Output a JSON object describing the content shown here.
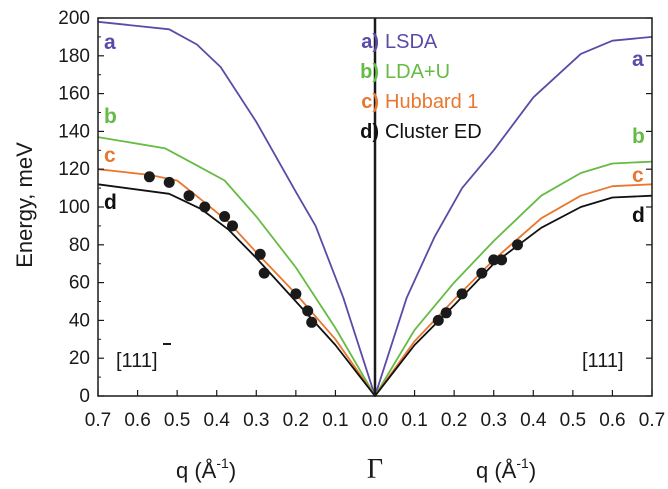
{
  "chart_data": {
    "type": "line",
    "ylabel": "Energy, meV",
    "xlabel_left": "q (Å",
    "xlabel_right": "q (Å",
    "xlabel_exp": "-1",
    "xlabel_close": ")",
    "center_label": "Γ",
    "direction_left": "[11",
    "direction_left_digit": "1",
    "direction_left_close": "]",
    "direction_right": "[111]",
    "ylim": [
      0,
      200
    ],
    "yticks": [
      0,
      20,
      40,
      60,
      80,
      100,
      120,
      140,
      160,
      180,
      200
    ],
    "ytick_labels": [
      "0",
      "20",
      "40",
      "60",
      "80",
      "100",
      "120",
      "140",
      "160",
      "180",
      "200"
    ],
    "xticks": [
      -0.7,
      -0.6,
      -0.5,
      -0.4,
      -0.3,
      -0.2,
      -0.1,
      0.0,
      0.1,
      0.2,
      0.3,
      0.4,
      0.5,
      0.6,
      0.7
    ],
    "xtick_labels": [
      "0.7",
      "0.6",
      "0.5",
      "0.4",
      "0.3",
      "0.2",
      "0.1",
      "0.0",
      "0.1",
      "0.2",
      "0.3",
      "0.4",
      "0.5",
      "0.6",
      "0.7"
    ],
    "series": [
      {
        "key": "a)",
        "name": "LSDA",
        "tag": "a",
        "color": "#5b4aa8",
        "points": [
          [
            -0.7,
            198
          ],
          [
            -0.52,
            194
          ],
          [
            -0.45,
            186
          ],
          [
            -0.39,
            174
          ],
          [
            -0.3,
            145
          ],
          [
            -0.2,
            108
          ],
          [
            -0.15,
            90
          ],
          [
            -0.08,
            52
          ],
          [
            0.0,
            0
          ],
          [
            0.08,
            52
          ],
          [
            0.15,
            84
          ],
          [
            0.22,
            110
          ],
          [
            0.3,
            130
          ],
          [
            0.4,
            158
          ],
          [
            0.52,
            181
          ],
          [
            0.6,
            188
          ],
          [
            0.7,
            190
          ]
        ]
      },
      {
        "key": "b)",
        "name": "LDA+U",
        "tag": "b",
        "color": "#66bb44",
        "points": [
          [
            -0.7,
            137
          ],
          [
            -0.53,
            131
          ],
          [
            -0.45,
            122
          ],
          [
            -0.38,
            114
          ],
          [
            -0.3,
            95
          ],
          [
            -0.2,
            68
          ],
          [
            -0.1,
            36
          ],
          [
            0.0,
            0
          ],
          [
            0.1,
            35
          ],
          [
            0.2,
            60
          ],
          [
            0.3,
            82
          ],
          [
            0.42,
            106
          ],
          [
            0.52,
            118
          ],
          [
            0.6,
            123
          ],
          [
            0.7,
            124
          ]
        ]
      },
      {
        "key": "c)",
        "name": "Hubbard 1",
        "tag": "c",
        "color": "#e87830",
        "points": [
          [
            -0.7,
            120
          ],
          [
            -0.57,
            117
          ],
          [
            -0.5,
            114
          ],
          [
            -0.44,
            104
          ],
          [
            -0.37,
            92
          ],
          [
            -0.3,
            76
          ],
          [
            -0.2,
            54
          ],
          [
            -0.1,
            30
          ],
          [
            0.0,
            0
          ],
          [
            0.1,
            29
          ],
          [
            0.2,
            51
          ],
          [
            0.3,
            72
          ],
          [
            0.42,
            94
          ],
          [
            0.52,
            106
          ],
          [
            0.6,
            111
          ],
          [
            0.7,
            112
          ]
        ]
      },
      {
        "key": "d)",
        "name": "Cluster ED",
        "tag": "d",
        "color": "#111111",
        "points": [
          [
            -0.7,
            112
          ],
          [
            -0.52,
            107
          ],
          [
            -0.44,
            99
          ],
          [
            -0.37,
            88
          ],
          [
            -0.3,
            73
          ],
          [
            -0.2,
            50
          ],
          [
            -0.1,
            27
          ],
          [
            0.0,
            0
          ],
          [
            0.1,
            27
          ],
          [
            0.2,
            48
          ],
          [
            0.3,
            70
          ],
          [
            0.42,
            89
          ],
          [
            0.52,
            100
          ],
          [
            0.6,
            105
          ],
          [
            0.7,
            106
          ]
        ]
      }
    ],
    "experimental_points": [
      [
        -0.57,
        116
      ],
      [
        -0.52,
        113
      ],
      [
        -0.47,
        106
      ],
      [
        -0.43,
        100
      ],
      [
        -0.38,
        95
      ],
      [
        -0.36,
        90
      ],
      [
        -0.29,
        75
      ],
      [
        -0.28,
        65
      ],
      [
        -0.2,
        54
      ],
      [
        -0.17,
        45
      ],
      [
        -0.16,
        39
      ],
      [
        0.16,
        40
      ],
      [
        0.18,
        44
      ],
      [
        0.22,
        54
      ],
      [
        0.27,
        65
      ],
      [
        0.3,
        72
      ],
      [
        0.32,
        72
      ],
      [
        0.36,
        80
      ]
    ]
  }
}
